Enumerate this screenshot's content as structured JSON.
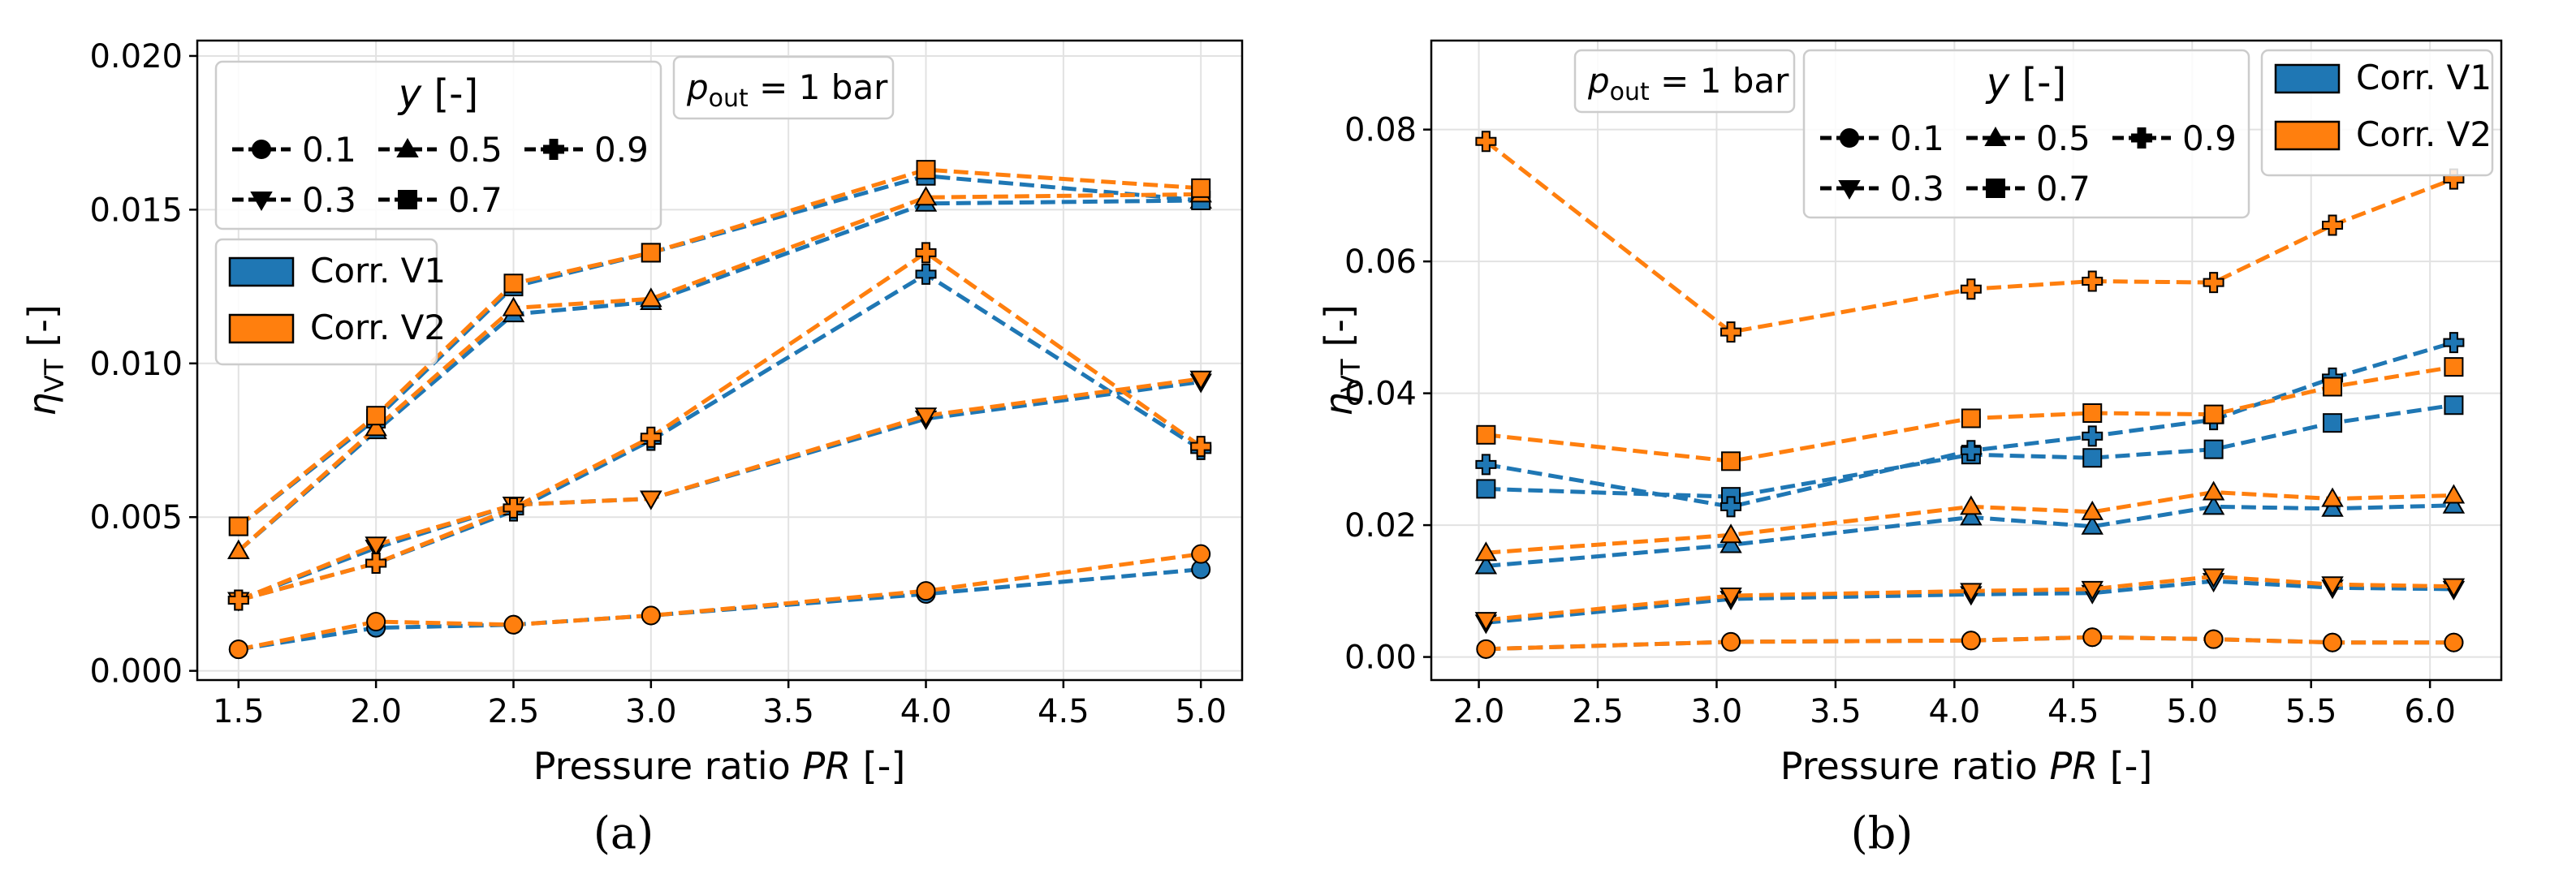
{
  "chart_data": [
    {
      "panel": "(a)",
      "type": "line",
      "xlabel_main": "Pressure ratio ",
      "xlabel_italic": "PR",
      "xlabel_suffix": " [-]",
      "ylabel_sym": "η",
      "ylabel_sub": "VT",
      "ylabel_suffix": " [-]",
      "xlim": [
        1.35,
        5.15
      ],
      "ylim": [
        -0.0003,
        0.0205
      ],
      "xticks": [
        1.5,
        2.0,
        2.5,
        3.0,
        3.5,
        4.0,
        4.5,
        5.0
      ],
      "xtick_labels": [
        "1.5",
        "2.0",
        "2.5",
        "3.0",
        "3.5",
        "4.0",
        "4.5",
        "5.0"
      ],
      "yticks": [
        0.0,
        0.005,
        0.01,
        0.015,
        0.02
      ],
      "ytick_labels": [
        "0.000",
        "0.005",
        "0.010",
        "0.015",
        "0.020"
      ],
      "annotation_main": "p",
      "annotation_sub": "out",
      "annotation_rest": " = 1 bar",
      "series": [
        {
          "corr": "V1",
          "y": "0.1",
          "marker": "circle",
          "x": [
            1.5,
            2.0,
            2.5,
            3.0,
            4.0,
            5.0
          ],
          "values": [
            0.0007,
            0.0014,
            0.0015,
            0.0018,
            0.0025,
            0.0033
          ]
        },
        {
          "corr": "V2",
          "y": "0.1",
          "marker": "circle",
          "x": [
            1.5,
            2.0,
            2.5,
            3.0,
            4.0,
            5.0
          ],
          "values": [
            0.0007,
            0.0016,
            0.0015,
            0.0018,
            0.0026,
            0.0038
          ]
        },
        {
          "corr": "V1",
          "y": "0.3",
          "marker": "triangle-down",
          "x": [
            1.5,
            2.0,
            2.5,
            3.0,
            4.0,
            5.0
          ],
          "values": [
            0.0023,
            0.004,
            0.0054,
            0.0056,
            0.0082,
            0.0094
          ]
        },
        {
          "corr": "V2",
          "y": "0.3",
          "marker": "triangle-down",
          "x": [
            1.5,
            2.0,
            2.5,
            3.0,
            4.0,
            5.0
          ],
          "values": [
            0.0023,
            0.0041,
            0.0054,
            0.0056,
            0.0083,
            0.0095
          ]
        },
        {
          "corr": "V1",
          "y": "0.5",
          "marker": "triangle-up",
          "x": [
            1.5,
            2.0,
            2.5,
            3.0,
            4.0,
            5.0
          ],
          "values": [
            0.0039,
            0.0078,
            0.0116,
            0.012,
            0.0152,
            0.0153
          ]
        },
        {
          "corr": "V2",
          "y": "0.5",
          "marker": "triangle-up",
          "x": [
            1.5,
            2.0,
            2.5,
            3.0,
            4.0,
            5.0
          ],
          "values": [
            0.0039,
            0.0079,
            0.0118,
            0.0121,
            0.0154,
            0.0155
          ]
        },
        {
          "corr": "V1",
          "y": "0.7",
          "marker": "square",
          "x": [
            1.5,
            2.0,
            2.5,
            3.0,
            4.0,
            5.0
          ],
          "values": [
            0.0047,
            0.0082,
            0.0125,
            0.0136,
            0.0161,
            0.0153
          ]
        },
        {
          "corr": "V2",
          "y": "0.7",
          "marker": "square",
          "x": [
            1.5,
            2.0,
            2.5,
            3.0,
            4.0,
            5.0
          ],
          "values": [
            0.0047,
            0.0083,
            0.0126,
            0.0136,
            0.0163,
            0.0157
          ]
        },
        {
          "corr": "V1",
          "y": "0.9",
          "marker": "plus",
          "x": [
            1.5,
            2.0,
            2.5,
            3.0,
            4.0,
            5.0
          ],
          "values": [
            0.0023,
            0.0035,
            0.0052,
            0.0075,
            0.0129,
            0.0072
          ]
        },
        {
          "corr": "V2",
          "y": "0.9",
          "marker": "plus",
          "x": [
            1.5,
            2.0,
            2.5,
            3.0,
            4.0,
            5.0
          ],
          "values": [
            0.0023,
            0.0035,
            0.0053,
            0.0076,
            0.0136,
            0.0073
          ]
        }
      ]
    },
    {
      "panel": "(b)",
      "type": "line",
      "xlabel_main": "Pressure ratio ",
      "xlabel_italic": "PR",
      "xlabel_suffix": " [-]",
      "ylabel_sym": "η",
      "ylabel_sub": "VT",
      "ylabel_suffix": " [-]",
      "xlim": [
        1.8,
        6.3
      ],
      "ylim": [
        -0.0035,
        0.0935
      ],
      "xticks": [
        2.0,
        2.5,
        3.0,
        3.5,
        4.0,
        4.5,
        5.0,
        5.5,
        6.0
      ],
      "xtick_labels": [
        "2.0",
        "2.5",
        "3.0",
        "3.5",
        "4.0",
        "4.5",
        "5.0",
        "5.5",
        "6.0"
      ],
      "yticks": [
        0.0,
        0.02,
        0.04,
        0.06,
        0.08
      ],
      "ytick_labels": [
        "0.00",
        "0.02",
        "0.04",
        "0.06",
        "0.08"
      ],
      "annotation_main": "p",
      "annotation_sub": "out",
      "annotation_rest": " = 1 bar",
      "series": [
        {
          "corr": "V1",
          "y": "0.1",
          "marker": "circle",
          "x": [
            2.03,
            3.06,
            4.07,
            4.58,
            5.09,
            5.59,
            6.1
          ],
          "values": [
            0.0012,
            0.0023,
            0.0025,
            0.003,
            0.0027,
            0.0022,
            0.0022
          ]
        },
        {
          "corr": "V2",
          "y": "0.1",
          "marker": "circle",
          "x": [
            2.03,
            3.06,
            4.07,
            4.58,
            5.09,
            5.59,
            6.1
          ],
          "values": [
            0.0012,
            0.0023,
            0.0025,
            0.003,
            0.0027,
            0.0022,
            0.0022
          ]
        },
        {
          "corr": "V1",
          "y": "0.3",
          "marker": "triangle-down",
          "x": [
            2.03,
            3.06,
            4.07,
            4.58,
            5.09,
            5.59,
            6.1
          ],
          "values": [
            0.0052,
            0.0088,
            0.0095,
            0.0097,
            0.0115,
            0.0105,
            0.0103
          ]
        },
        {
          "corr": "V2",
          "y": "0.3",
          "marker": "triangle-down",
          "x": [
            2.03,
            3.06,
            4.07,
            4.58,
            5.09,
            5.59,
            6.1
          ],
          "values": [
            0.0056,
            0.0093,
            0.01,
            0.0103,
            0.0122,
            0.011,
            0.0107
          ]
        },
        {
          "corr": "V1",
          "y": "0.5",
          "marker": "triangle-up",
          "x": [
            2.03,
            3.06,
            4.07,
            4.58,
            5.09,
            5.59,
            6.1
          ],
          "values": [
            0.0138,
            0.017,
            0.0212,
            0.0198,
            0.0228,
            0.0225,
            0.023
          ]
        },
        {
          "corr": "V2",
          "y": "0.5",
          "marker": "triangle-up",
          "x": [
            2.03,
            3.06,
            4.07,
            4.58,
            5.09,
            5.59,
            6.1
          ],
          "values": [
            0.0158,
            0.0185,
            0.0228,
            0.022,
            0.025,
            0.024,
            0.0245
          ]
        },
        {
          "corr": "V1",
          "y": "0.7",
          "marker": "square",
          "x": [
            2.03,
            3.06,
            4.07,
            4.58,
            5.09,
            5.59,
            6.1
          ],
          "values": [
            0.0255,
            0.0243,
            0.0307,
            0.0302,
            0.0315,
            0.0355,
            0.0382
          ]
        },
        {
          "corr": "V2",
          "y": "0.7",
          "marker": "square",
          "x": [
            2.03,
            3.06,
            4.07,
            4.58,
            5.09,
            5.59,
            6.1
          ],
          "values": [
            0.0337,
            0.0297,
            0.0362,
            0.037,
            0.0368,
            0.041,
            0.044
          ]
        },
        {
          "corr": "V1",
          "y": "0.9",
          "marker": "plus",
          "x": [
            2.03,
            3.06,
            4.07,
            4.58,
            5.09,
            5.59,
            6.1
          ],
          "values": [
            0.0292,
            0.0228,
            0.0313,
            0.0335,
            0.036,
            0.0423,
            0.0477
          ]
        },
        {
          "corr": "V2",
          "y": "0.9",
          "marker": "plus",
          "x": [
            2.03,
            3.06,
            4.07,
            4.58,
            5.09,
            5.59,
            6.1
          ],
          "values": [
            0.0782,
            0.0493,
            0.0558,
            0.057,
            0.0568,
            0.0655,
            0.0725
          ]
        }
      ]
    }
  ],
  "legend": {
    "y_title_sym": "y",
    "y_title_rest": " [-]",
    "y_values": [
      "0.1",
      "0.3",
      "0.5",
      "0.7",
      "0.9"
    ],
    "corr_v1": "Corr. V1",
    "corr_v2": "Corr. V2"
  },
  "colors": {
    "v1": "#1f77b4",
    "v2": "#ff7f0e"
  }
}
